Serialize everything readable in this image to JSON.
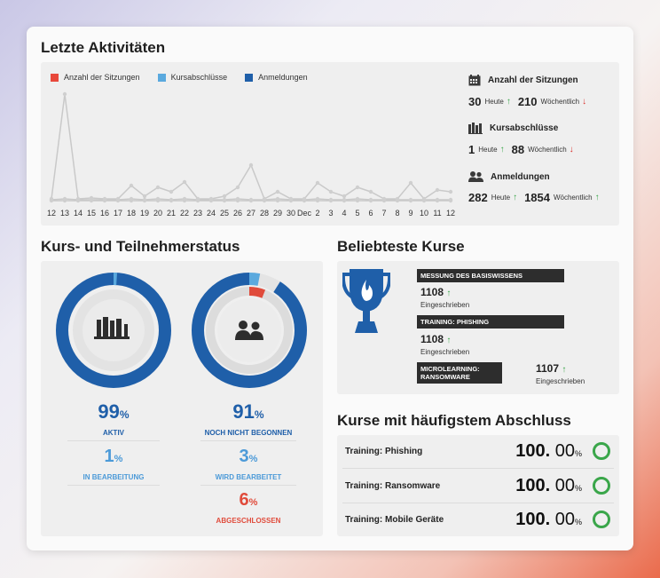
{
  "activity": {
    "title": "Letzte Aktivitäten",
    "legend": [
      {
        "label": "Anzahl der Sitzungen",
        "color": "#e8483b"
      },
      {
        "label": "Kursabschlüsse",
        "color": "#5aa9de"
      },
      {
        "label": "Anmeldungen",
        "color": "#1f5fa9"
      }
    ],
    "stats": [
      {
        "title": "Anzahl der Sitzungen",
        "icon": "calendar-icon",
        "today": "30",
        "today_label": "Heute",
        "today_trend": "up",
        "weekly": "210",
        "weekly_label": "Wöchentlich",
        "weekly_trend": "down"
      },
      {
        "title": "Kursabschlüsse",
        "icon": "books-icon",
        "today": "1",
        "today_label": "Heute",
        "today_trend": "up",
        "weekly": "88",
        "weekly_label": "Wöchentlich",
        "weekly_trend": "down"
      },
      {
        "title": "Anmeldungen",
        "icon": "users-icon",
        "today": "282",
        "today_label": "Heute",
        "today_trend": "up",
        "weekly": "1854",
        "weekly_label": "Wöchentlich",
        "weekly_trend": "up"
      }
    ]
  },
  "chart_data": {
    "type": "line",
    "x": [
      "12",
      "13",
      "14",
      "15",
      "16",
      "17",
      "18",
      "19",
      "20",
      "21",
      "22",
      "23",
      "24",
      "25",
      "26",
      "27",
      "28",
      "29",
      "30",
      "Dec",
      "2",
      "3",
      "4",
      "5",
      "6",
      "7",
      "8",
      "9",
      "10",
      "11",
      "12"
    ],
    "ylim": [
      0,
      120
    ],
    "series": [
      {
        "name": "Anzahl der Sitzungen",
        "color": "#c9c9c9",
        "values": [
          2,
          120,
          2,
          3,
          2,
          2,
          17,
          5,
          15,
          10,
          21,
          2,
          2,
          5,
          15,
          40,
          2,
          10,
          2,
          2,
          20,
          10,
          5,
          15,
          10,
          2,
          2,
          20,
          2,
          12,
          10
        ]
      },
      {
        "name": "Kursabschlüsse",
        "color": "#c9c9c9",
        "values": [
          0,
          0,
          0,
          0,
          0,
          0,
          0,
          0,
          0,
          0,
          0,
          0,
          0,
          0,
          0,
          0,
          0,
          0,
          0,
          0,
          0,
          0,
          0,
          0,
          0,
          0,
          0,
          0,
          0,
          0,
          0
        ]
      },
      {
        "name": "Anmeldungen",
        "color": "#c9c9c9",
        "values": [
          1,
          2,
          1,
          1,
          1,
          1,
          2,
          1,
          2,
          1,
          2,
          1,
          1,
          1,
          2,
          1,
          1,
          2,
          1,
          1,
          2,
          1,
          1,
          2,
          1,
          1,
          1,
          1,
          1,
          1,
          1
        ]
      }
    ]
  },
  "status": {
    "title": "Kurs- und Teilnehmerstatus",
    "left": {
      "icon": "books-icon",
      "segments": [
        {
          "value": 99,
          "color": "#1f5fa9"
        },
        {
          "value": 1,
          "color": "#5aa9de"
        }
      ],
      "big_value": "99",
      "big_label": "AKTIV",
      "mid_value": "1",
      "mid_label": "IN BEARBEITUNG",
      "unit": "%"
    },
    "right": {
      "icon": "users-icon",
      "outer": [
        {
          "value": 91,
          "color": "#1f5fa9"
        },
        {
          "value": 3,
          "color": "#5aa9de"
        },
        {
          "value": 6,
          "color": "#e8e8e8"
        }
      ],
      "inner": [
        {
          "value": 6,
          "color": "#e04b3b"
        }
      ],
      "big_value": "91",
      "big_label": "NOCH NICHT BEGONNEN",
      "mid_value": "3",
      "mid_label": "WIRD BEARBEITET",
      "low_value": "6",
      "low_label": "ABGESCHLOSSEN",
      "unit": "%"
    }
  },
  "popular": {
    "title": "Beliebteste Kurse",
    "trophy_icon": "trophy-icon",
    "courses": [
      {
        "name": "MESSUNG DES BASISWISSENS",
        "count": "1108",
        "label": "Eingeschrieben"
      },
      {
        "name": "TRAINING: PHISHING",
        "count": "1108",
        "label": "Eingeschrieben"
      },
      {
        "name": "MICROLEARNING: RANSOMWARE",
        "count": "1107",
        "label": "Eingeschrieben"
      }
    ]
  },
  "completion": {
    "title": "Kurse mit häufigstem Abschluss",
    "rows": [
      {
        "name": "Training: Phishing",
        "int": "100.",
        "dec": "00",
        "unit": "%"
      },
      {
        "name": "Training: Ransomware",
        "int": "100.",
        "dec": "00",
        "unit": "%"
      },
      {
        "name": "Training: Mobile Geräte",
        "int": "100.",
        "dec": "00",
        "unit": "%"
      }
    ]
  }
}
